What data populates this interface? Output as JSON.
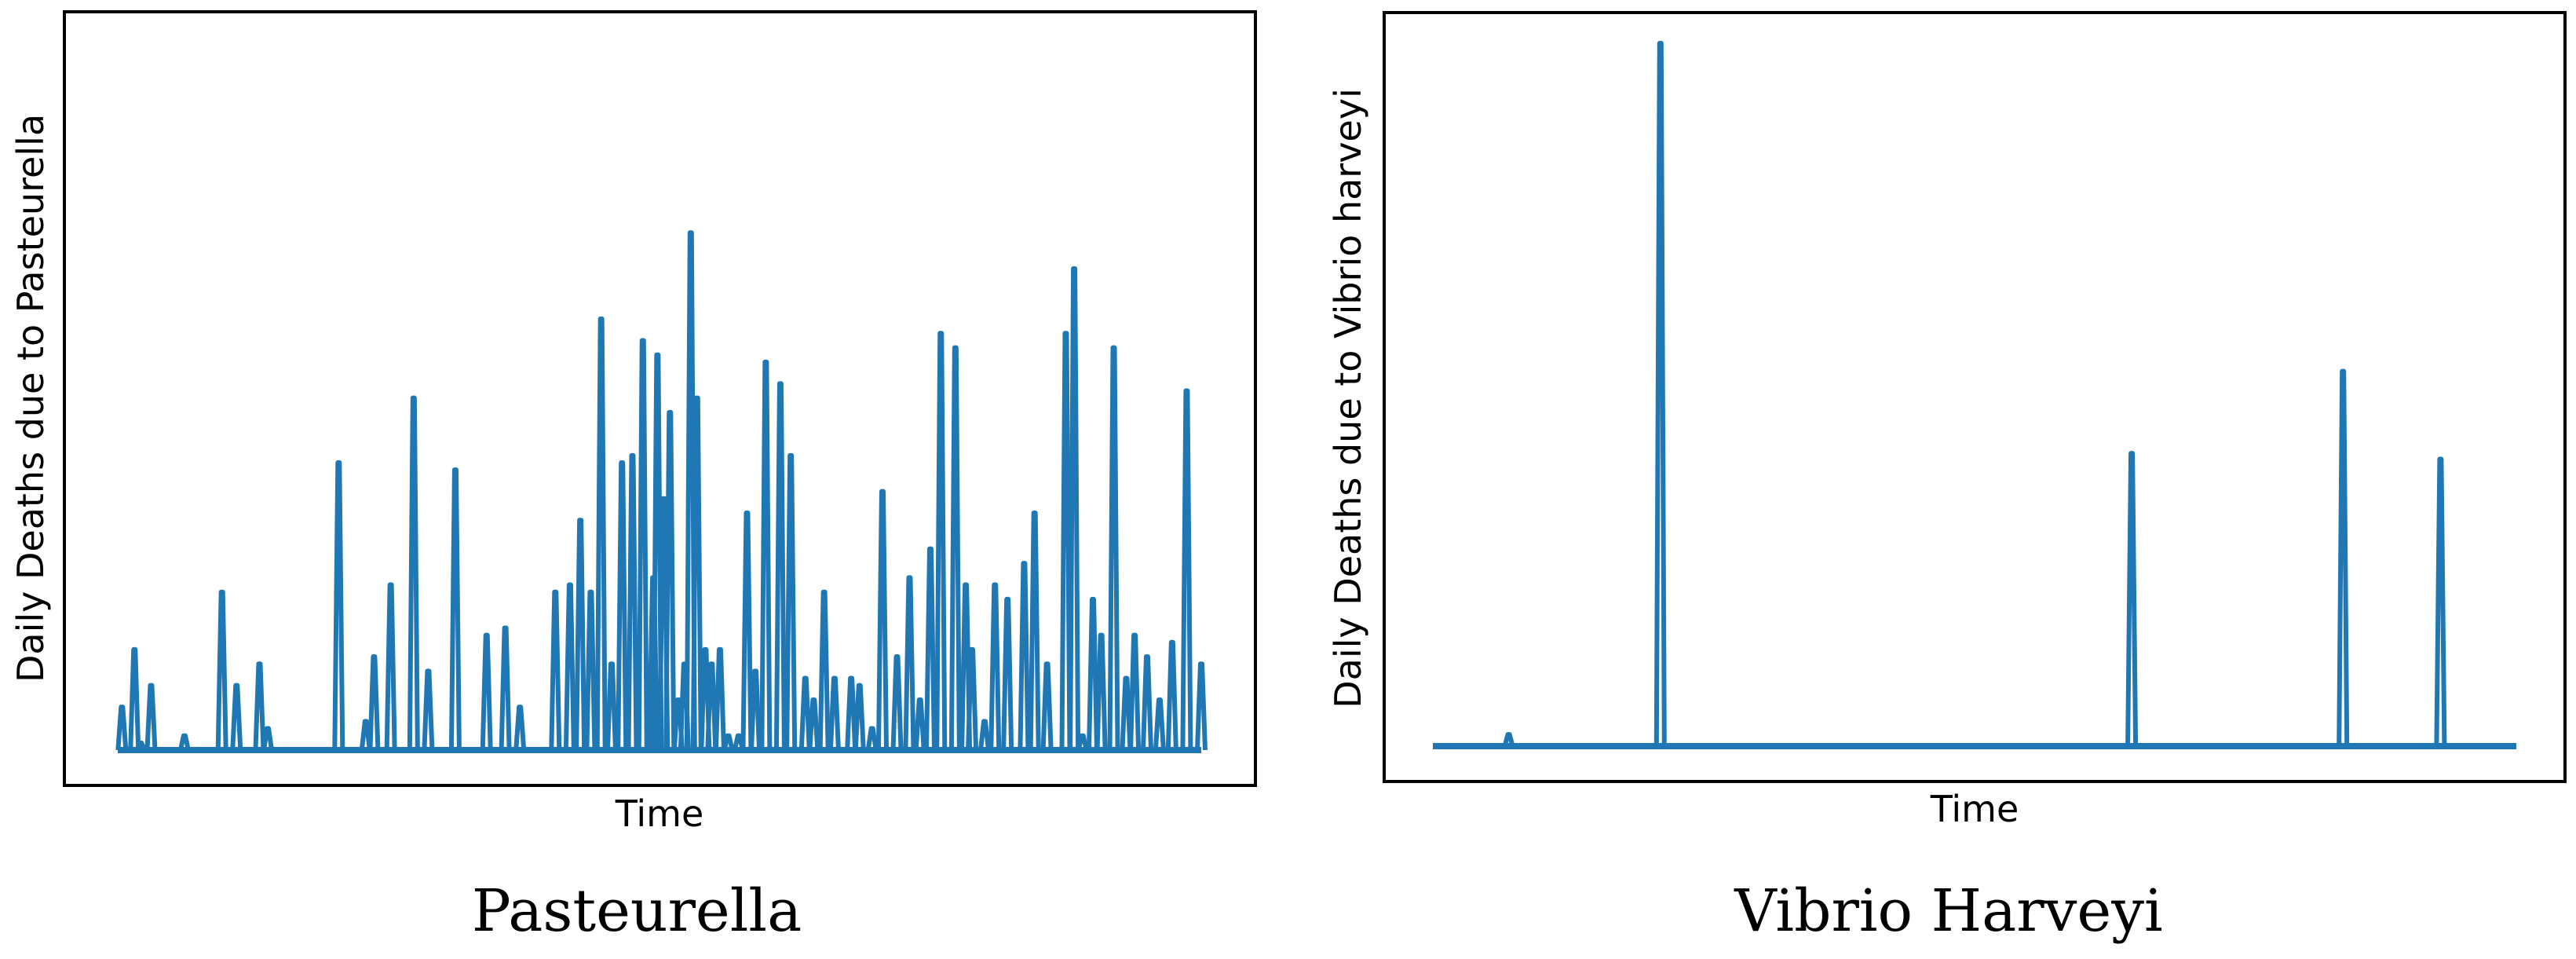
{
  "colors": {
    "series": "#1f77b4",
    "frame": "#000000"
  },
  "chart_data": [
    {
      "type": "line",
      "caption": "Pasteurella",
      "xlabel": "Time",
      "ylabel": "Daily Deaths due to Pasteurella",
      "xticks": "none",
      "yticks": "none",
      "grid": false,
      "x": [
        2,
        8,
        11,
        16,
        32,
        50,
        57,
        68,
        72,
        106,
        119,
        123,
        131,
        142,
        149,
        162,
        177,
        186,
        193,
        210,
        217,
        222,
        227,
        232,
        237,
        242,
        247,
        252,
        257,
        259,
        262,
        265,
        269,
        272,
        275,
        278,
        282,
        285,
        289,
        293,
        298,
        302,
        306,
        311,
        318,
        323,
        330,
        334,
        339,
        344,
        352,
        356,
        362,
        367,
        374,
        380,
        385,
        390,
        395,
        402,
        407,
        410,
        416,
        421,
        427,
        435,
        440,
        446,
        455,
        459,
        463,
        468,
        472,
        478,
        484,
        488,
        494,
        500,
        506,
        513,
        520
      ],
      "y": [
        6,
        14,
        1,
        9,
        2,
        22,
        9,
        12,
        3,
        40,
        4,
        13,
        23,
        49,
        11,
        39,
        16,
        17,
        6,
        22,
        23,
        32,
        22,
        60,
        12,
        40,
        41,
        57,
        24,
        55,
        35,
        47,
        7,
        12,
        72,
        49,
        14,
        12,
        14,
        2,
        2,
        33,
        11,
        54,
        51,
        41,
        10,
        7,
        22,
        10,
        10,
        9,
        3,
        36,
        13,
        24,
        7,
        28,
        58,
        56,
        23,
        14,
        4,
        23,
        21,
        26,
        33,
        12,
        58,
        67,
        2,
        21,
        16,
        56,
        10,
        16,
        13,
        7,
        15,
        50,
        12
      ],
      "ylim": [
        0,
        100
      ]
    },
    {
      "type": "line",
      "caption": "Vibrio Harveyi",
      "xlabel": "Time",
      "ylabel": "Daily Deaths due to Vibrio harveyi",
      "xticks": "none",
      "yticks": "none",
      "grid": false,
      "x": [
        70,
        210,
        645,
        840,
        930
      ],
      "y": [
        1,
        60,
        25,
        32,
        24.5
      ],
      "ylim": [
        0,
        60
      ]
    }
  ]
}
